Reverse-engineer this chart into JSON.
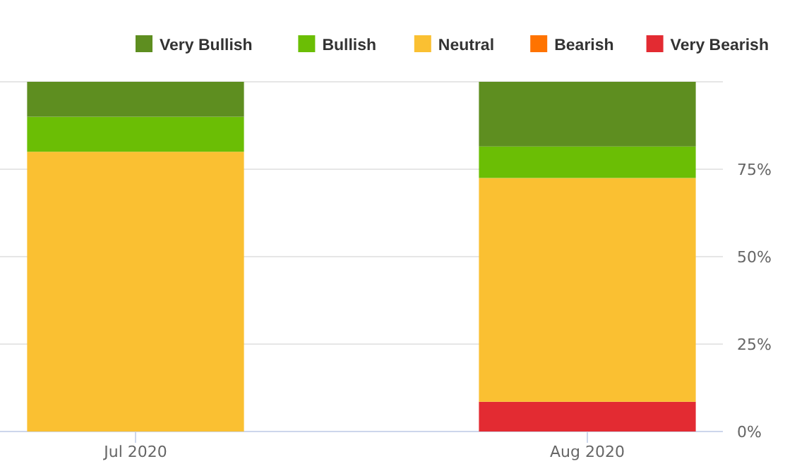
{
  "chart_data": {
    "type": "bar",
    "stacked": true,
    "categories": [
      "Jul 2020",
      "Aug 2020"
    ],
    "series": [
      {
        "name": "Very Bearish",
        "color": "#e32b32",
        "values": [
          0,
          8.5
        ]
      },
      {
        "name": "Bearish",
        "color": "#ff7300",
        "values": [
          0,
          0
        ]
      },
      {
        "name": "Neutral",
        "color": "#fac032",
        "values": [
          80,
          64
        ]
      },
      {
        "name": "Bullish",
        "color": "#6bbe05",
        "values": [
          10,
          9
        ]
      },
      {
        "name": "Very Bullish",
        "color": "#5e8e20",
        "values": [
          10,
          18.5
        ]
      }
    ],
    "ylim": [
      0,
      100
    ],
    "yticks": [
      {
        "value": 0,
        "label": "0%"
      },
      {
        "value": 25,
        "label": "25%"
      },
      {
        "value": 50,
        "label": "50%"
      },
      {
        "value": 75,
        "label": "75%"
      },
      {
        "value": 100,
        "label": null
      }
    ],
    "grid": "y",
    "legend": "top"
  }
}
